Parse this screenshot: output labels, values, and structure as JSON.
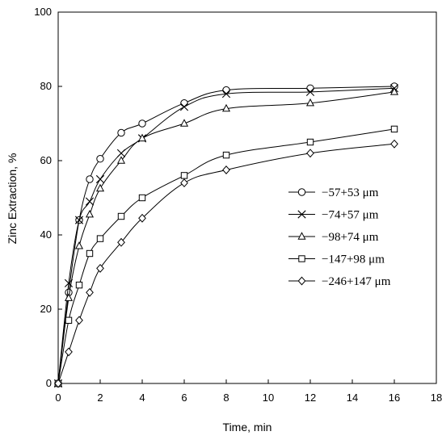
{
  "chart_data": {
    "type": "line",
    "title": "",
    "xlabel": "Time, min",
    "ylabel": "Zinc Extraction, %",
    "xlim": [
      0,
      18
    ],
    "ylim": [
      0,
      100
    ],
    "xticks": [
      0,
      2,
      4,
      6,
      8,
      10,
      12,
      14,
      16,
      18
    ],
    "yticks": [
      0,
      20,
      40,
      60,
      80,
      100
    ],
    "grid": false,
    "legend_position": "center-right",
    "series": [
      {
        "name": "−57+53 μm",
        "marker": "circle",
        "x": [
          0,
          0.5,
          1,
          1.5,
          2,
          3,
          4,
          6,
          8,
          12,
          16
        ],
        "y": [
          0,
          24.5,
          44,
          55,
          60.5,
          67.5,
          70,
          75.5,
          79,
          79.5,
          80
        ]
      },
      {
        "name": "−74+57 μm",
        "marker": "x",
        "x": [
          0,
          0.5,
          1,
          1.5,
          2,
          3,
          4,
          6,
          8,
          12,
          16
        ],
        "y": [
          0,
          27,
          44,
          49,
          55,
          62,
          66,
          74.5,
          78,
          78.5,
          79.5
        ]
      },
      {
        "name": "−98+74 μm",
        "marker": "triangle",
        "x": [
          0,
          0.5,
          1,
          1.5,
          2,
          3,
          4,
          6,
          8,
          12,
          16
        ],
        "y": [
          0,
          23,
          37,
          45.5,
          52.5,
          60,
          66,
          70,
          74,
          75.5,
          78.5
        ]
      },
      {
        "name": "−147+98 μm",
        "marker": "square",
        "x": [
          0,
          0.5,
          1,
          1.5,
          2,
          3,
          4,
          6,
          8,
          12,
          16
        ],
        "y": [
          0,
          17,
          26.5,
          35,
          39,
          45,
          50,
          56,
          61.5,
          65,
          68.5
        ]
      },
      {
        "name": "−246+147 μm",
        "marker": "diamond",
        "x": [
          0,
          0.5,
          1,
          1.5,
          2,
          3,
          4,
          6,
          8,
          12,
          16
        ],
        "y": [
          0,
          8.5,
          17,
          24.5,
          31,
          38,
          44.5,
          54,
          57.5,
          62,
          64.5
        ]
      }
    ]
  }
}
